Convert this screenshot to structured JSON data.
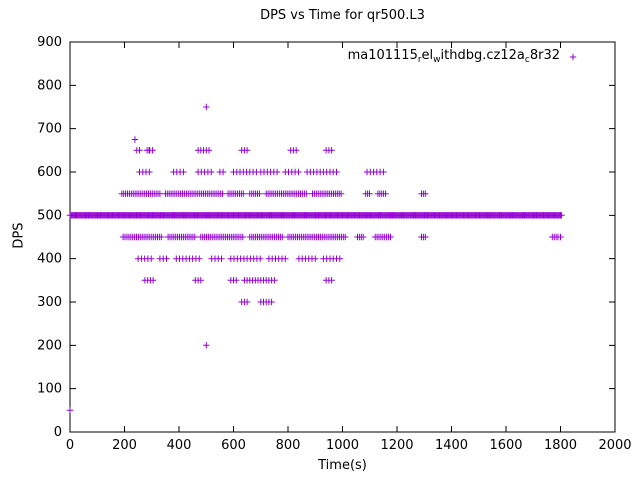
{
  "window": {
    "background": "#ffffff"
  },
  "chart_data": {
    "type": "scatter",
    "title": "DPS vs Time for qr500.L3",
    "xlabel": "Time(s)",
    "ylabel": "DPS",
    "xlim": [
      0,
      2000
    ],
    "ylim": [
      0,
      900
    ],
    "xticks": [
      0,
      200,
      400,
      600,
      800,
      1000,
      1200,
      1400,
      1600,
      1800,
      2000
    ],
    "yticks": [
      0,
      100,
      200,
      300,
      400,
      500,
      600,
      700,
      800,
      900
    ],
    "grid": false,
    "legend_position": "top-right-inside",
    "marker": "plus",
    "marker_color": "#9400d3",
    "series_name_raw": "ma101115_rel_withdbg.cz12a_c8r32",
    "legend_segments": [
      {
        "text": "ma101115",
        "sub": false
      },
      {
        "text": "r",
        "sub": true
      },
      {
        "text": "el",
        "sub": false
      },
      {
        "text": "w",
        "sub": true
      },
      {
        "text": "ithdbg.cz12a",
        "sub": false
      },
      {
        "text": "c",
        "sub": true
      },
      {
        "text": "8r32",
        "sub": false
      }
    ],
    "bands_note": "Horizontal bands of plus markers; segments are [x_start,x_end] in Time(s), markers spaced ~step apart at constant DPS y.",
    "bands": [
      {
        "y": 500,
        "step": 4,
        "segments": [
          [
            0,
            1805
          ]
        ]
      },
      {
        "y": 550,
        "step": 7,
        "segments": [
          [
            190,
            330
          ],
          [
            350,
            560
          ],
          [
            580,
            640
          ],
          [
            660,
            700
          ],
          [
            720,
            870
          ],
          [
            890,
            1000
          ],
          [
            1085,
            1105
          ],
          [
            1130,
            1160
          ],
          [
            1290,
            1310
          ]
        ]
      },
      {
        "y": 450,
        "step": 7,
        "segments": [
          [
            195,
            340
          ],
          [
            360,
            460
          ],
          [
            480,
            640
          ],
          [
            660,
            780
          ],
          [
            800,
            1010
          ],
          [
            1055,
            1080
          ],
          [
            1120,
            1180
          ],
          [
            1290,
            1310
          ],
          [
            1770,
            1795
          ]
        ]
      },
      {
        "y": 600,
        "step": 12,
        "segments": [
          [
            255,
            300
          ],
          [
            380,
            420
          ],
          [
            470,
            520
          ],
          [
            550,
            570
          ],
          [
            600,
            690
          ],
          [
            700,
            770
          ],
          [
            790,
            840
          ],
          [
            870,
            980
          ],
          [
            1090,
            1150
          ]
        ]
      },
      {
        "y": 400,
        "step": 12,
        "segments": [
          [
            250,
            300
          ],
          [
            330,
            360
          ],
          [
            390,
            480
          ],
          [
            520,
            560
          ],
          [
            590,
            700
          ],
          [
            730,
            800
          ],
          [
            840,
            900
          ],
          [
            930,
            1000
          ]
        ]
      },
      {
        "y": 650,
        "step": 10,
        "segments": [
          [
            245,
            258
          ],
          [
            283,
            305
          ],
          [
            470,
            510
          ],
          [
            630,
            652
          ],
          [
            810,
            830
          ],
          [
            940,
            960
          ]
        ]
      },
      {
        "y": 350,
        "step": 10,
        "segments": [
          [
            275,
            305
          ],
          [
            460,
            482
          ],
          [
            590,
            612
          ],
          [
            640,
            750
          ],
          [
            940,
            960
          ]
        ]
      },
      {
        "y": 300,
        "step": 10,
        "segments": [
          [
            630,
            652
          ],
          [
            700,
            740
          ]
        ]
      }
    ],
    "outlier_points": [
      [
        0,
        50
      ],
      [
        238,
        675
      ],
      [
        290,
        650
      ],
      [
        500,
        750
      ],
      [
        500,
        200
      ],
      [
        1800,
        450
      ],
      [
        1800,
        500
      ]
    ]
  }
}
